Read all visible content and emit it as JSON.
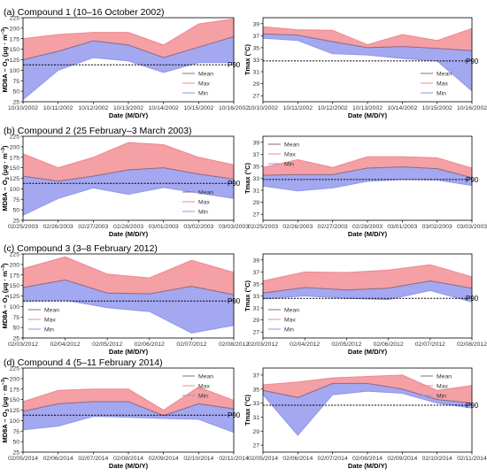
{
  "colors": {
    "max_fill": "#f4a0a4",
    "min_fill": "#a4a8f0",
    "mean_line": "#8a6a8a",
    "max_line": "#f08890",
    "min_line": "#9096ea",
    "p90_line": "#000000"
  },
  "common": {
    "xlabel": "Date (M/D/Y)",
    "ylabel_o3": "MD8A – O",
    "ylabel_o3_sub": "3",
    "ylabel_o3_unit": " (μg · m",
    "ylabel_o3_sup": "−3",
    "ylabel_o3_close": ")",
    "ylabel_t": "Tmax (°C)",
    "p90_label": "P90",
    "legend": [
      "Mean",
      "Max",
      "Min"
    ]
  },
  "chart_data": [
    {
      "type": "area",
      "row_title": "(a) Compound 1 (10–16 October 2002)",
      "panel": "ozone",
      "ylim": [
        25,
        225
      ],
      "yticks": [
        25,
        50,
        75,
        100,
        125,
        150,
        175,
        200,
        225
      ],
      "categories": [
        "10/10/2002",
        "10/11/2002",
        "10/12/2002",
        "10/13/2002",
        "10/14/2002",
        "10/15/2002",
        "10/16/2002"
      ],
      "series": [
        {
          "name": "Mean",
          "values": [
            125,
            145,
            170,
            160,
            130,
            155,
            180
          ]
        },
        {
          "name": "Max",
          "values": [
            175,
            185,
            190,
            190,
            160,
            210,
            222
          ]
        },
        {
          "name": "Min",
          "values": [
            30,
            100,
            130,
            122,
            95,
            118,
            118
          ]
        }
      ],
      "p90": 113,
      "legend_position": "lower-right"
    },
    {
      "type": "area",
      "row_title": "(a) Compound 1 (10–16 October 2002)",
      "panel": "temperature",
      "ylim": [
        26,
        40
      ],
      "yticks": [
        27,
        29,
        31,
        33,
        35,
        37,
        39
      ],
      "categories": [
        "10/10/2002",
        "10/11/2002",
        "10/12/2002",
        "10/13/2002",
        "10/14/2002",
        "10/15/2002",
        "10/16/2002"
      ],
      "series": [
        {
          "name": "Mean",
          "values": [
            37.3,
            37.1,
            36.0,
            35.0,
            35.2,
            34.9,
            34.5
          ]
        },
        {
          "name": "Max",
          "values": [
            38.5,
            38.0,
            37.9,
            35.5,
            37.2,
            36.2,
            38.2
          ]
        },
        {
          "name": "Min",
          "values": [
            36.6,
            36.2,
            34.0,
            33.8,
            33.2,
            32.8,
            27.8
          ]
        }
      ],
      "p90": 32.8,
      "legend_position": "lower-right"
    },
    {
      "type": "area",
      "row_title": "(b) Compound 2 (25 February–3 March 2003)",
      "panel": "ozone",
      "ylim": [
        25,
        225
      ],
      "yticks": [
        25,
        50,
        75,
        100,
        125,
        150,
        175,
        200,
        225
      ],
      "categories": [
        "02/25/2003",
        "02/26/2003",
        "02/27/2003",
        "02/28/2003",
        "03/01/2003",
        "03/02/2003",
        "03/03/2003"
      ],
      "series": [
        {
          "name": "Mean",
          "values": [
            130,
            118,
            130,
            145,
            150,
            135,
            123
          ]
        },
        {
          "name": "Max",
          "values": [
            183,
            150,
            175,
            210,
            205,
            175,
            157
          ]
        },
        {
          "name": "Min",
          "values": [
            37,
            77,
            102,
            87,
            103,
            90,
            77
          ]
        }
      ],
      "p90": 113,
      "legend_position": "lower-right"
    },
    {
      "type": "area",
      "row_title": "(b) Compound 2 (25 February–3 March 2003)",
      "panel": "temperature",
      "ylim": [
        26,
        40
      ],
      "yticks": [
        27,
        29,
        31,
        33,
        35,
        37,
        39
      ],
      "categories": [
        "02/25/2003",
        "02/26/2003",
        "02/27/2003",
        "02/28/2003",
        "03/01/2003",
        "03/02/2003",
        "03/03/2003"
      ],
      "series": [
        {
          "name": "Mean",
          "values": [
            33.5,
            33.6,
            33.6,
            34.7,
            34.9,
            34.6,
            33.1
          ]
        },
        {
          "name": "Max",
          "values": [
            34.8,
            36.1,
            34.8,
            36.6,
            36.6,
            36.4,
            34.7
          ]
        },
        {
          "name": "Min",
          "values": [
            31.7,
            30.9,
            31.4,
            32.5,
            32.8,
            32.7,
            31.8
          ]
        }
      ],
      "p90": 32.8,
      "legend_position": "upper-left"
    },
    {
      "type": "area",
      "row_title": "(c) Compound 3 (3–8 February 2012)",
      "panel": "ozone",
      "ylim": [
        25,
        225
      ],
      "yticks": [
        25,
        50,
        75,
        100,
        125,
        150,
        175,
        200,
        225
      ],
      "categories": [
        "02/03/2012",
        "02/04/2012",
        "02/05/2012",
        "02/06/2012",
        "02/07/2012",
        "02/08/2012"
      ],
      "series": [
        {
          "name": "Mean",
          "values": [
            145,
            163,
            132,
            130,
            148,
            128
          ]
        },
        {
          "name": "Max",
          "values": [
            190,
            218,
            177,
            168,
            210,
            181
          ]
        },
        {
          "name": "Min",
          "values": [
            113,
            115,
            97,
            88,
            37,
            55
          ]
        }
      ],
      "p90": 113,
      "legend_position": "lower-left"
    },
    {
      "type": "area",
      "row_title": "(c) Compound 3 (3–8 February 2012)",
      "panel": "temperature",
      "ylim": [
        26,
        40
      ],
      "yticks": [
        27,
        29,
        31,
        33,
        35,
        37,
        39
      ],
      "categories": [
        "02/03/2012",
        "02/04/2012",
        "02/05/2012",
        "02/06/2012",
        "02/07/2012",
        "02/08/2012"
      ],
      "series": [
        {
          "name": "Mean",
          "values": [
            33.5,
            34.4,
            34.0,
            34.3,
            35.5,
            34.3
          ]
        },
        {
          "name": "Max",
          "values": [
            35.5,
            37.0,
            36.9,
            37.3,
            38.2,
            36.2
          ]
        },
        {
          "name": "Min",
          "values": [
            32.5,
            33.0,
            32.6,
            32.4,
            33.9,
            32.0
          ]
        }
      ],
      "p90": 32.6,
      "legend_position": "lower-left"
    },
    {
      "type": "area",
      "row_title": "(d) Compound 4 (5–11 February 2014)",
      "panel": "ozone",
      "ylim": [
        25,
        225
      ],
      "yticks": [
        25,
        50,
        75,
        100,
        125,
        150,
        175,
        200,
        225
      ],
      "categories": [
        "02/05/2014",
        "02/06/2014",
        "02/07/2014",
        "02/08/2014",
        "02/09/2014",
        "02/10/2014",
        "02/11/2014"
      ],
      "series": [
        {
          "name": "Mean",
          "values": [
            122,
            140,
            145,
            145,
            112,
            140,
            128
          ]
        },
        {
          "name": "Max",
          "values": [
            145,
            172,
            175,
            175,
            125,
            180,
            148
          ]
        },
        {
          "name": "Min",
          "values": [
            78,
            87,
            110,
            108,
            105,
            103,
            72
          ]
        }
      ],
      "p90": 113,
      "legend_position": "upper-right"
    },
    {
      "type": "area",
      "row_title": "(d) Compound 4 (5–11 February 2014)",
      "panel": "temperature",
      "ylim": [
        26,
        38
      ],
      "yticks": [
        27,
        29,
        31,
        33,
        35,
        37
      ],
      "categories": [
        "02/05/2014",
        "02/06/2014",
        "02/07/2014",
        "02/08/2014",
        "02/09/2014",
        "02/10/2014",
        "02/11/2014"
      ],
      "series": [
        {
          "name": "Mean",
          "values": [
            34.8,
            33.8,
            35.8,
            35.8,
            35.0,
            33.5,
            33.0
          ]
        },
        {
          "name": "Max",
          "values": [
            35.6,
            36.0,
            36.6,
            36.8,
            37.0,
            34.8,
            35.5
          ]
        },
        {
          "name": "Min",
          "values": [
            34.2,
            28.4,
            34.2,
            34.7,
            34.4,
            33.0,
            32.3
          ]
        }
      ],
      "p90": 32.7,
      "legend_position": "upper-right"
    }
  ]
}
